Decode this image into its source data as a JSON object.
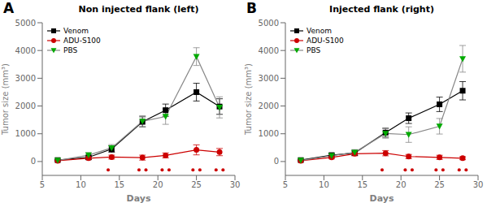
{
  "chart_data": [
    {
      "type": "line",
      "title": "Non injected flank (left)",
      "annotations": [
        "A"
      ],
      "xlabel": "Days",
      "ylabel": "Tumor size (mm³)",
      "x": [
        7,
        11,
        14,
        18,
        21,
        25,
        28
      ],
      "series": [
        {
          "name": "Venom",
          "color": "#000000",
          "marker": "square",
          "values": [
            50,
            150,
            450,
            1430,
            1850,
            2500,
            1980
          ],
          "errors": [
            20,
            70,
            120,
            180,
            220,
            320,
            280
          ]
        },
        {
          "name": "ADU-S100",
          "color": "#cc0000",
          "marker": "circle",
          "values": [
            30,
            120,
            160,
            140,
            220,
            420,
            340
          ],
          "errors": [
            15,
            50,
            70,
            90,
            90,
            180,
            130
          ]
        },
        {
          "name": "PBS",
          "color": "#888888",
          "colors": [
            "#00aa00",
            "#00aa00",
            "#00aa00",
            "#00aa00",
            "#00aa00",
            "#00aa00",
            "#00aa00"
          ],
          "marker": "triangle-down",
          "values": [
            40,
            230,
            490,
            1450,
            1620,
            3780,
            1950
          ],
          "errors": [
            15,
            90,
            120,
            200,
            280,
            320,
            380
          ]
        }
      ],
      "significance": {
        "x": [
          14,
          18,
          18,
          21,
          21,
          25,
          25,
          28,
          28
        ],
        "y": -300,
        "color": "#cc0000"
      },
      "xlim": [
        5,
        30
      ],
      "xticks": [
        5,
        10,
        15,
        20,
        25,
        30
      ],
      "ylim": [
        -500,
        5000
      ],
      "yticks": [
        0,
        1000,
        2000,
        3000,
        4000,
        5000
      ],
      "grid": false,
      "legend": "upper left"
    },
    {
      "type": "line",
      "title": "Injected flank (right)",
      "annotations": [
        "B"
      ],
      "xlabel": "Days",
      "ylabel": "Tumor size (mm³)",
      "x": [
        7,
        11,
        14,
        18,
        21,
        25,
        28
      ],
      "series": [
        {
          "name": "Venom",
          "color": "#000000",
          "marker": "square",
          "values": [
            50,
            230,
            310,
            1040,
            1560,
            2060,
            2550
          ],
          "errors": [
            25,
            70,
            90,
            160,
            190,
            260,
            330
          ]
        },
        {
          "name": "ADU-S100",
          "color": "#cc0000",
          "marker": "circle",
          "values": [
            30,
            150,
            280,
            300,
            180,
            150,
            120
          ],
          "errors": [
            15,
            55,
            75,
            95,
            75,
            75,
            55
          ]
        },
        {
          "name": "PBS",
          "color": "#888888",
          "colors": [
            "#00aa00",
            "#00aa00",
            "#00aa00",
            "#00aa00",
            "#00aa00",
            "#00aa00",
            "#00aa00"
          ],
          "marker": "triangle-down",
          "values": [
            40,
            210,
            330,
            1010,
            970,
            1270,
            3700
          ],
          "errors": [
            15,
            75,
            100,
            170,
            280,
            280,
            480
          ]
        }
      ],
      "significance": {
        "x": [
          18,
          21,
          21,
          25,
          25,
          28,
          28
        ],
        "y": -300,
        "color": "#cc0000"
      },
      "xlim": [
        5,
        30
      ],
      "xticks": [
        5,
        10,
        15,
        20,
        25,
        30
      ],
      "ylim": [
        -500,
        5000
      ],
      "yticks": [
        0,
        1000,
        2000,
        3000,
        4000,
        5000
      ],
      "grid": false,
      "legend": "upper left"
    }
  ]
}
